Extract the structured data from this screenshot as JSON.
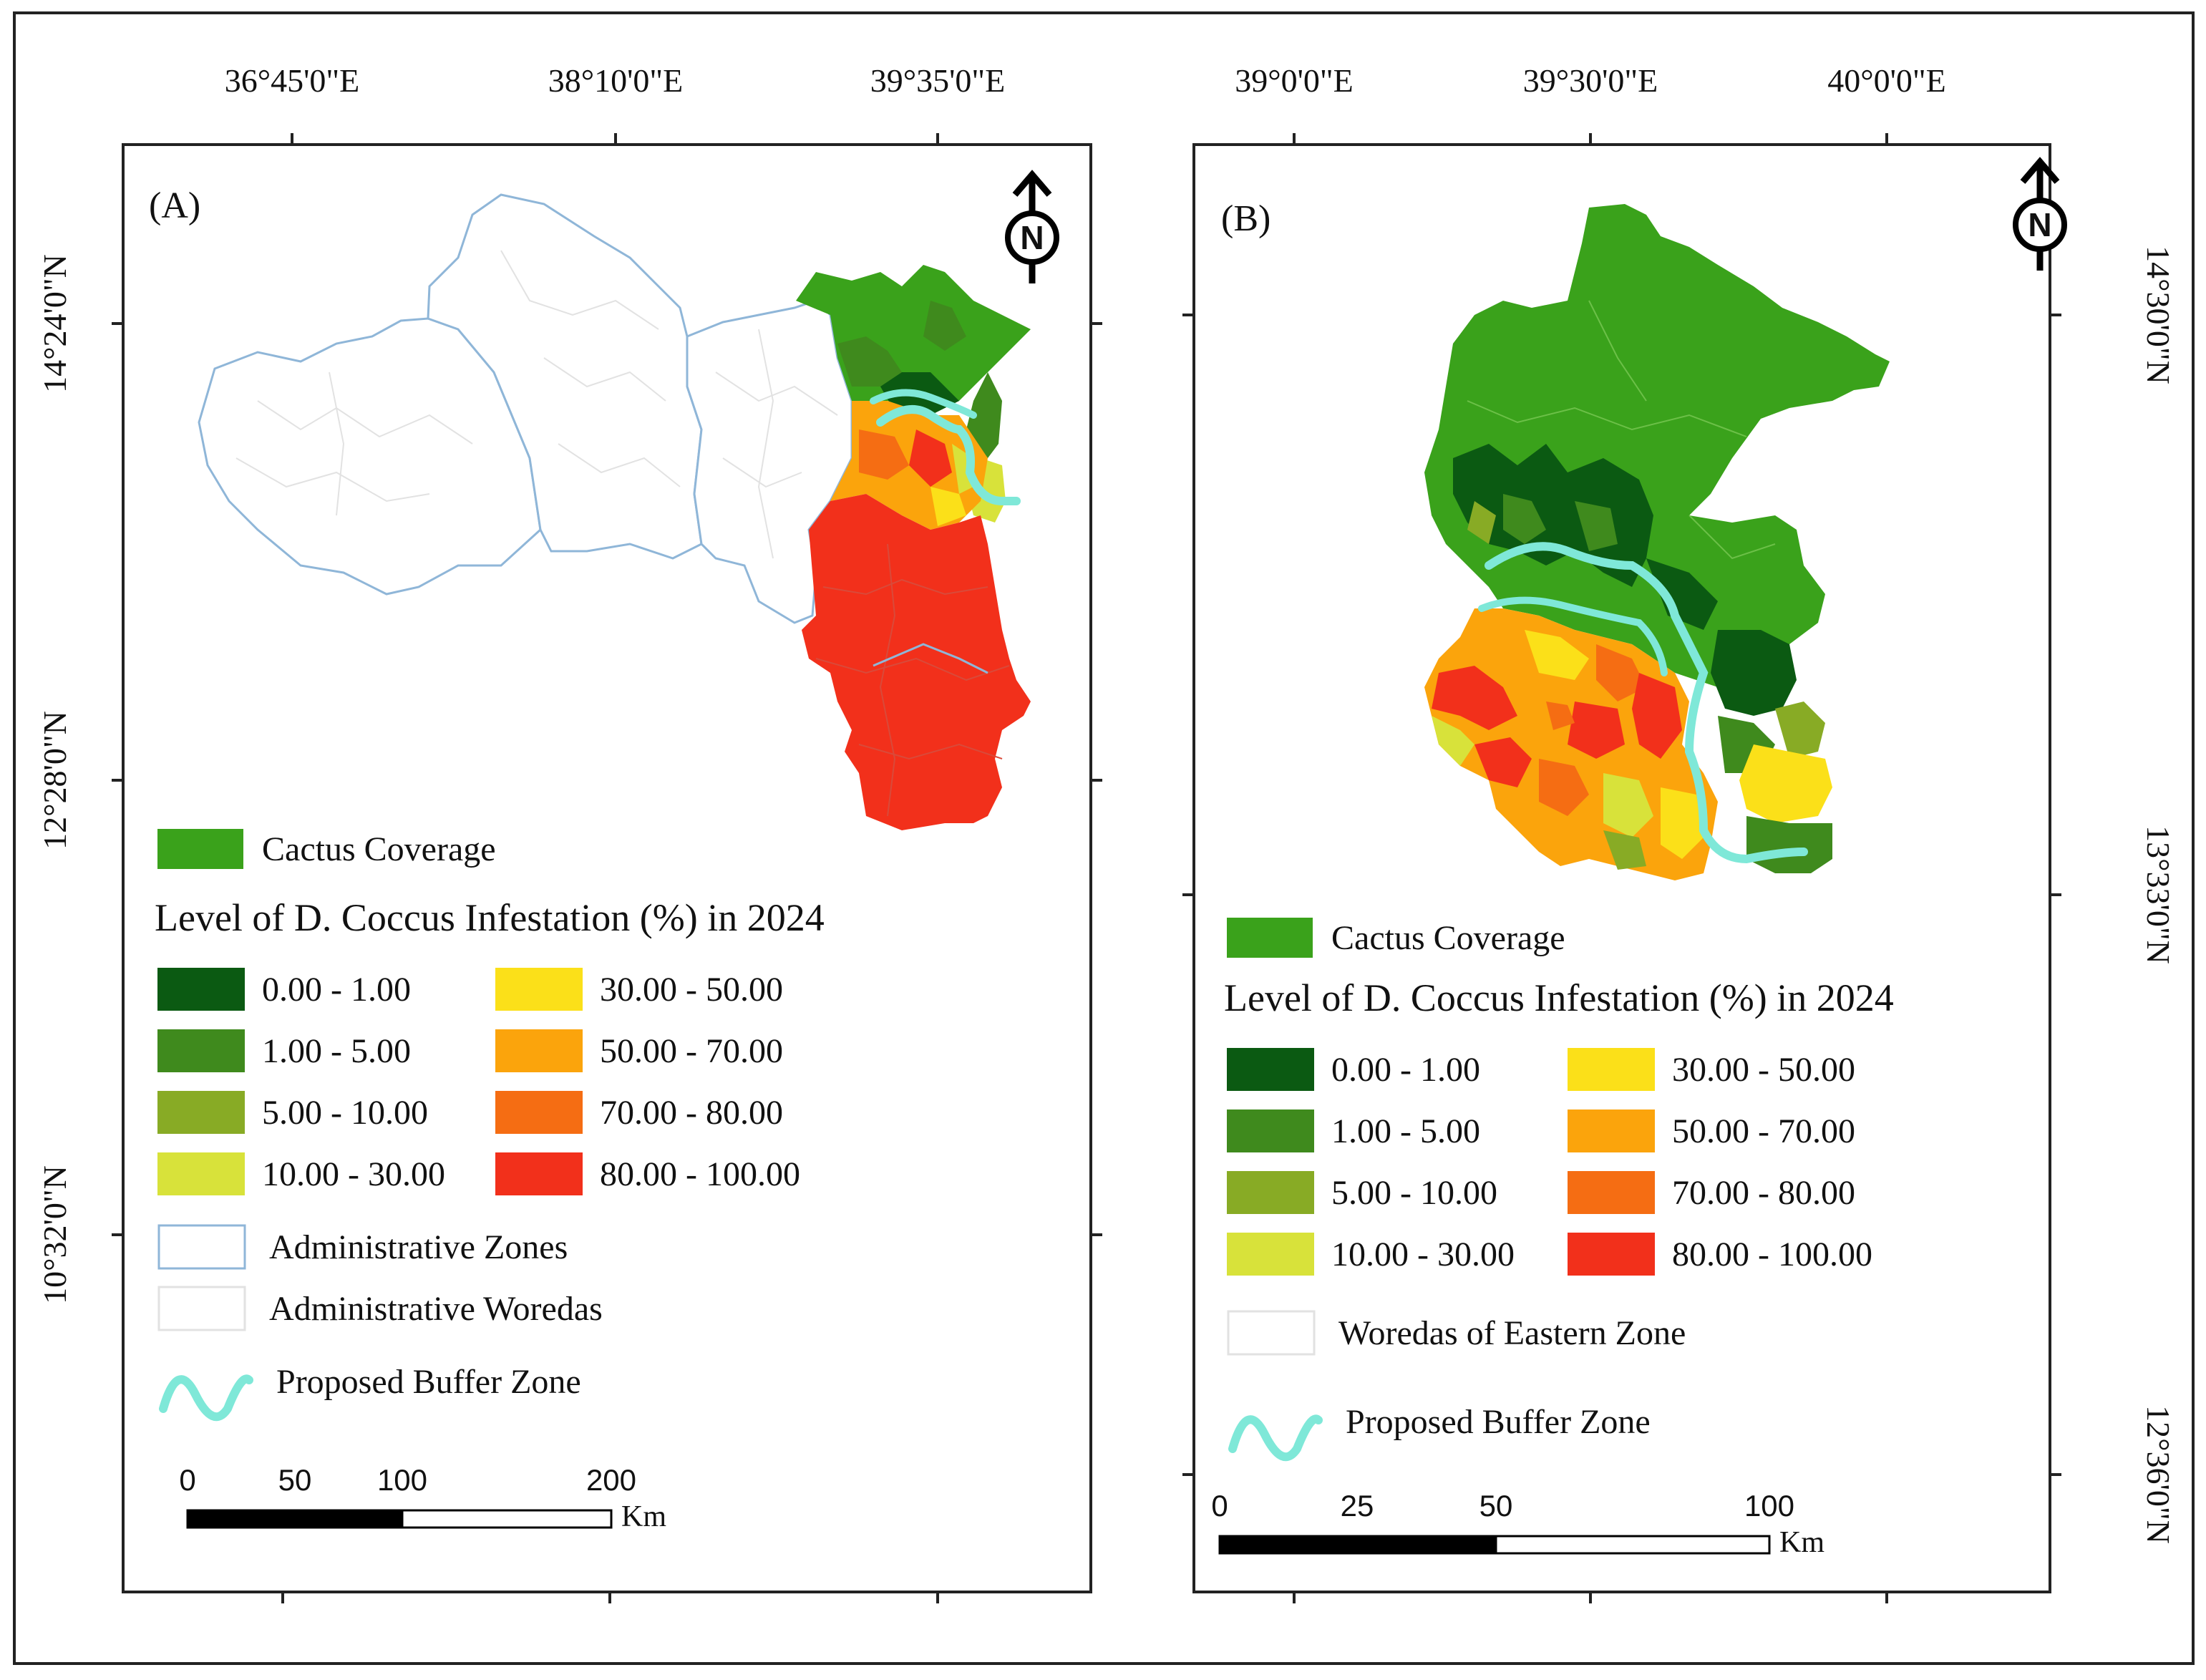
{
  "panels": [
    {
      "id": "A",
      "label": "(A)",
      "lon_labels": [
        "36°45'0\"E",
        "38°10'0\"E",
        "39°35'0\"E"
      ],
      "lat_labels": [
        "14°24'0\"N",
        "12°28'0\"N",
        "10°32'0\"N"
      ],
      "north_symbol": "N",
      "legend": {
        "cactus_label": "Cactus Coverage",
        "infestation_title": "Level of D. Coccus Infestation (%) in 2024",
        "classes": [
          {
            "label": "0.00 - 1.00",
            "color": "#0b5a12"
          },
          {
            "label": "1.00 - 5.00",
            "color": "#3f8a1d"
          },
          {
            "label": "5.00 - 10.00",
            "color": "#88ab25"
          },
          {
            "label": "10.00 - 30.00",
            "color": "#d8e23a"
          },
          {
            "label": "30.00 - 50.00",
            "color": "#fbe019"
          },
          {
            "label": "50.00 - 70.00",
            "color": "#fba40c"
          },
          {
            "label": "70.00 - 80.00",
            "color": "#f56d13"
          },
          {
            "label": "80.00 - 100.00",
            "color": "#f2301b"
          }
        ],
        "extra": [
          {
            "label": "Administrative Zones"
          },
          {
            "label": "Administrative Woredas"
          },
          {
            "label": "Proposed Buffer Zone"
          }
        ]
      },
      "scale": {
        "ticks": [
          "0",
          "50",
          "100",
          "200"
        ],
        "unit": "Km"
      }
    },
    {
      "id": "B",
      "label": "(B)",
      "lon_labels": [
        "39°0'0\"E",
        "39°30'0\"E",
        "40°0'0\"E"
      ],
      "lat_labels": [
        "14°30'0\"N",
        "13°33'0\"N",
        "12°36'0\"N"
      ],
      "north_symbol": "N",
      "legend": {
        "cactus_label": "Cactus Coverage",
        "infestation_title": "Level of D. Coccus Infestation (%) in 2024",
        "classes": [
          {
            "label": "0.00 - 1.00",
            "color": "#0b5a12"
          },
          {
            "label": "1.00 - 5.00",
            "color": "#3f8a1d"
          },
          {
            "label": "5.00 - 10.00",
            "color": "#88ab25"
          },
          {
            "label": "10.00 - 30.00",
            "color": "#d8e23a"
          },
          {
            "label": "30.00 - 50.00",
            "color": "#fbe019"
          },
          {
            "label": "50.00 - 70.00",
            "color": "#fba40c"
          },
          {
            "label": "70.00 - 80.00",
            "color": "#f56d13"
          },
          {
            "label": "80.00 - 100.00",
            "color": "#f2301b"
          }
        ],
        "extra": [
          {
            "label": "Woredas of Eastern Zone"
          },
          {
            "label": "Proposed Buffer Zone"
          }
        ]
      },
      "scale": {
        "ticks": [
          "0",
          "25",
          "50",
          "100"
        ],
        "unit": "Km"
      }
    }
  ],
  "colors": {
    "cactus": "#3aa21b",
    "buffer": "#7fe8d8",
    "zone_border": "#8fb6d8",
    "woreda_border": "#e2e2e2"
  }
}
